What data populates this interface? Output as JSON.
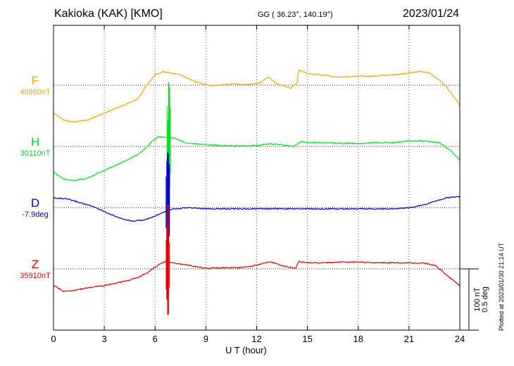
{
  "header": {
    "station": "Kakioka (KAK)  [KMO]",
    "coords": "GG ( 36.23°, 140.19°)",
    "date": "2023/01/24"
  },
  "plotted_note": "Plotted at 2023/01/30 21:14 UT",
  "scale_labels": [
    "100 nT",
    "0.5 deg"
  ],
  "colors": {
    "F": "#f2a800",
    "H": "#00e020",
    "D": "#0000cc",
    "Z": "#e00000"
  },
  "chart_data": {
    "type": "line",
    "xlabel": "U T (hour)",
    "xlim": [
      0,
      24
    ],
    "xticks": [
      0,
      3,
      6,
      9,
      12,
      15,
      18,
      21,
      24
    ],
    "grid": true,
    "channels": [
      {
        "name": "F",
        "baseline": "46860nT",
        "unit": "nT",
        "x": [
          0,
          0.6,
          1.2,
          2,
          2.6,
          3.4,
          4.2,
          5,
          5.5,
          6,
          6.5,
          7,
          7.5,
          8,
          8.7,
          9.3,
          10,
          10.8,
          11.5,
          12.2,
          12.7,
          13.2,
          14,
          14.4,
          14.5,
          15,
          15.8,
          16.8,
          17.5,
          18.2,
          19,
          20,
          20.8,
          21.6,
          22.2,
          22.8,
          23.3,
          24
        ],
        "values": [
          -45,
          -57,
          -60,
          -57,
          -50,
          -41,
          -32,
          -22,
          0,
          17,
          22,
          19,
          17,
          10,
          3,
          -1,
          1,
          2,
          1,
          4,
          13,
          2,
          -5,
          4,
          25,
          19,
          17,
          13,
          14,
          15,
          15,
          17,
          19,
          23,
          20,
          8,
          -6,
          -32
        ]
      },
      {
        "name": "H",
        "baseline": "30110nT",
        "unit": "nT",
        "x": [
          0,
          0.6,
          1.2,
          2,
          2.6,
          3.4,
          4.2,
          5,
          5.5,
          5.9,
          6.2,
          6.6,
          6.8,
          7.2,
          7.8,
          8.5,
          9.5,
          10.5,
          11.5,
          12.2,
          12.7,
          13.5,
          14.2,
          14.6,
          14.9,
          16,
          17,
          18,
          19,
          20,
          21,
          22,
          22.8,
          23.5,
          24
        ],
        "values": [
          -42,
          -53,
          -56,
          -52,
          -44,
          -34,
          -24,
          -13,
          -1,
          10,
          16,
          14,
          15,
          13,
          6,
          4,
          2,
          1,
          1,
          2,
          4,
          3,
          0,
          8,
          7,
          6,
          5,
          5,
          6,
          6,
          9,
          9,
          6,
          -8,
          -22
        ]
      },
      {
        "name": "D",
        "baseline": "-7.9deg",
        "unit": "deg",
        "x": [
          0,
          0.8,
          1.6,
          2.5,
          3.3,
          4,
          4.7,
          5.4,
          6,
          6.4,
          7,
          8,
          9,
          10,
          11,
          12,
          13,
          14,
          15,
          16,
          17,
          18,
          19,
          20,
          21,
          21.8,
          22.5,
          23.2,
          24
        ],
        "values": [
          0.08,
          0.07,
          0.04,
          0.0,
          -0.05,
          -0.09,
          -0.11,
          -0.1,
          -0.07,
          -0.04,
          -0.01,
          0.0,
          -0.01,
          -0.01,
          -0.01,
          -0.01,
          -0.01,
          -0.01,
          -0.01,
          -0.01,
          -0.01,
          -0.01,
          -0.01,
          -0.01,
          0.0,
          0.02,
          0.05,
          0.08,
          0.09
        ]
      },
      {
        "name": "Z",
        "baseline": "35910nT",
        "unit": "nT",
        "x": [
          0,
          0.6,
          1.2,
          2,
          2.8,
          3.6,
          4.4,
          5,
          5.6,
          6.1,
          6.6,
          7,
          7.5,
          8.2,
          9,
          10,
          11,
          12,
          12.8,
          13.5,
          14.3,
          14.5,
          15,
          16,
          17,
          18,
          19,
          20,
          21,
          22,
          22.6,
          23.2,
          24
        ],
        "values": [
          -27,
          -37,
          -35,
          -31,
          -28,
          -24,
          -19,
          -14,
          -5,
          5,
          12,
          10,
          8,
          5,
          1,
          2,
          2,
          6,
          12,
          5,
          1,
          12,
          10,
          10,
          11,
          11,
          10,
          10,
          10,
          9,
          5,
          -10,
          -27
        ]
      }
    ],
    "disturbances": [
      {
        "channel": "H",
        "x": 6.8,
        "min": -75,
        "max": 105
      },
      {
        "channel": "D",
        "x": 6.75,
        "min": -0.3,
        "max": 0.45
      },
      {
        "channel": "Z",
        "x": 6.75,
        "min": -75,
        "max": 105
      }
    ]
  }
}
